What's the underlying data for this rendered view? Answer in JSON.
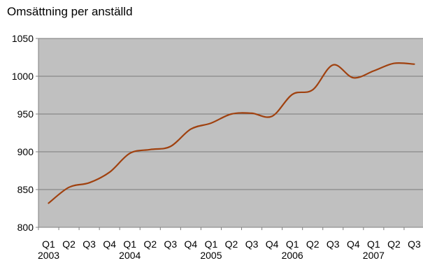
{
  "chart_data": {
    "type": "line",
    "title": "Omsättning per anställd",
    "xlabel": "",
    "ylabel": "",
    "ylim": [
      800,
      1050
    ],
    "yticks": [
      800,
      850,
      900,
      950,
      1000,
      1050
    ],
    "grid": true,
    "legend": "none",
    "categories": [
      "Q1",
      "Q2",
      "Q3",
      "Q4",
      "Q1",
      "Q2",
      "Q3",
      "Q4",
      "Q1",
      "Q2",
      "Q3",
      "Q4",
      "Q1",
      "Q2",
      "Q3",
      "Q4",
      "Q1",
      "Q2",
      "Q3"
    ],
    "years": [
      {
        "label": "2003",
        "first_index": 0
      },
      {
        "label": "2004",
        "first_index": 4
      },
      {
        "label": "2005",
        "first_index": 8
      },
      {
        "label": "2006",
        "first_index": 12
      },
      {
        "label": "2007",
        "first_index": 16
      }
    ],
    "series": [
      {
        "values": [
          832,
          853,
          859,
          873,
          898,
          903,
          907,
          930,
          938,
          950,
          951,
          947,
          976,
          982,
          1015,
          998,
          1007,
          1017,
          1016
        ]
      }
    ],
    "colors": {
      "plot_background": "#c0c0c0",
      "gridline": "#7a7a7a",
      "line": "#a0410f",
      "axis": "#808080"
    }
  }
}
